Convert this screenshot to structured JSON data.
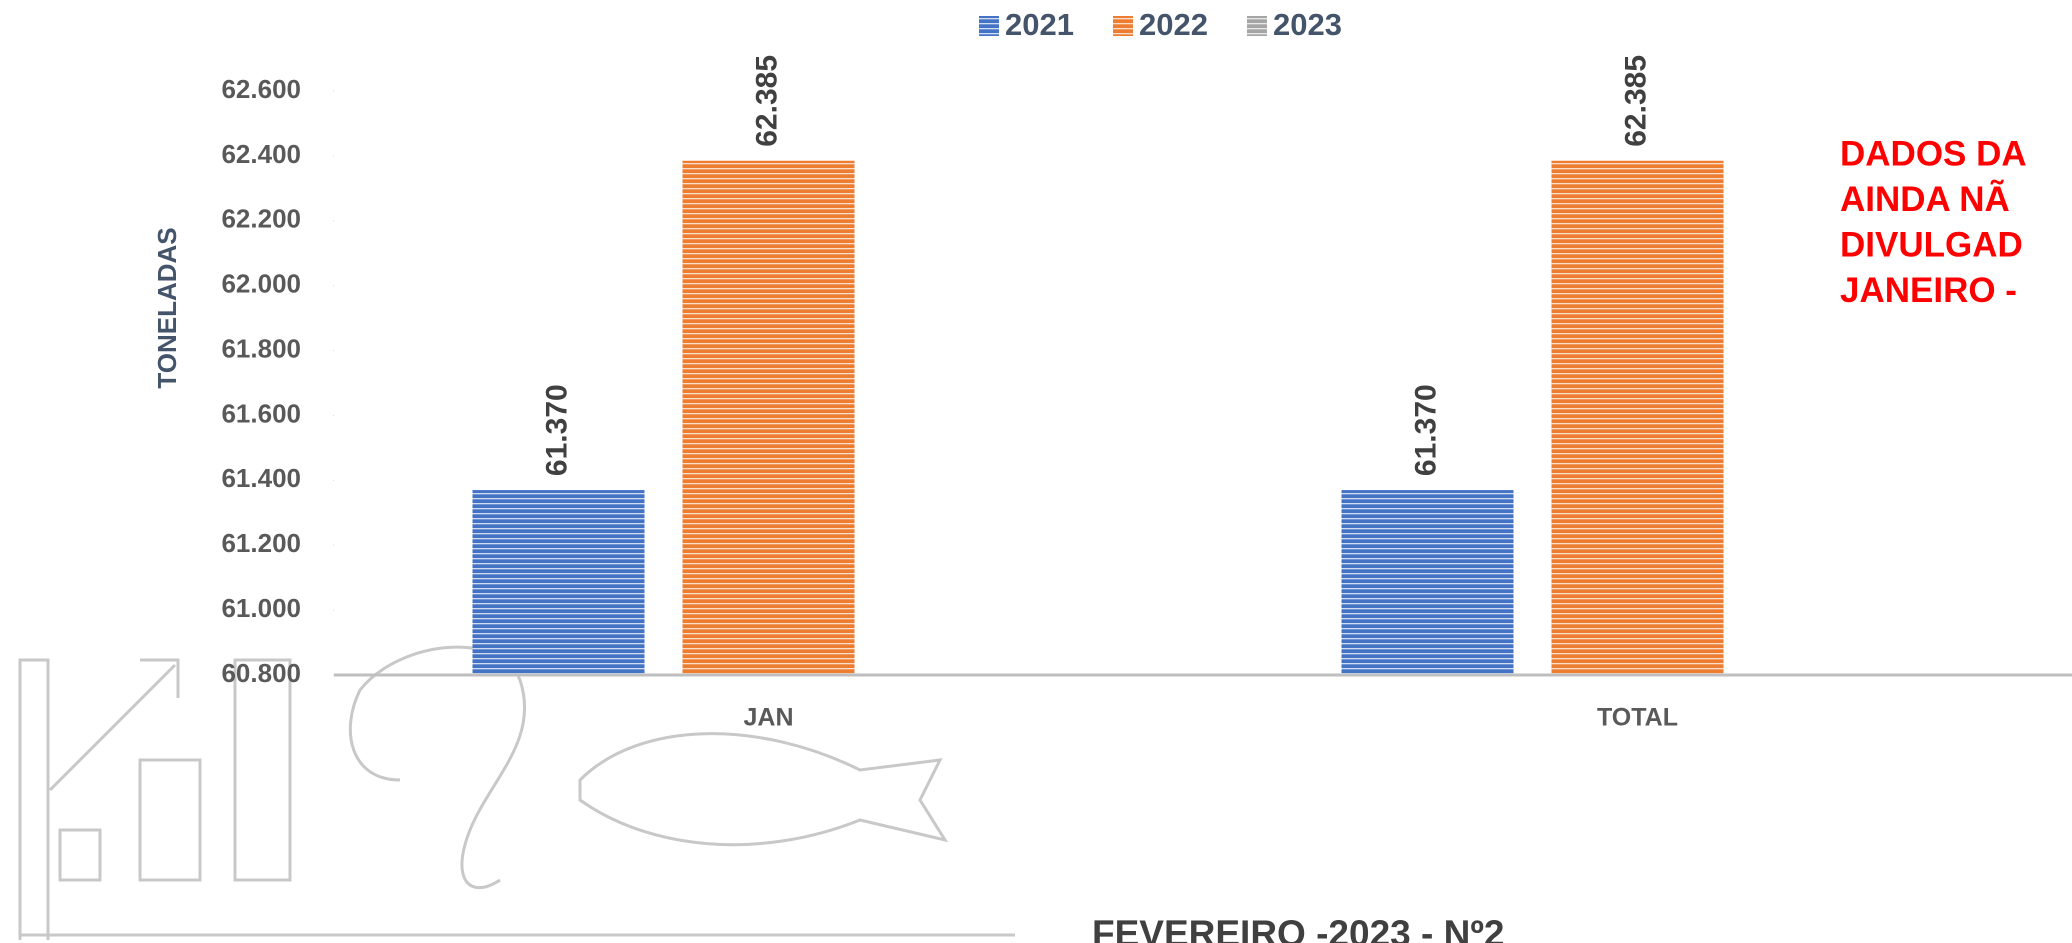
{
  "chart_data": {
    "type": "bar",
    "y_label": "TONELADAS",
    "categories": [
      "JAN",
      "TOTAL"
    ],
    "series": [
      {
        "name": "2021",
        "color": "#4472c4",
        "values": [
          61370,
          61370
        ],
        "value_labels": [
          "61.370",
          "61.370"
        ]
      },
      {
        "name": "2022",
        "color": "#ed7d31",
        "values": [
          62385,
          62385
        ],
        "value_labels": [
          "62.385",
          "62.385"
        ]
      },
      {
        "name": "2023",
        "color": "#a5a5a5",
        "values": [
          null,
          null
        ]
      }
    ],
    "ylim": [
      60800,
      62600
    ],
    "yticks": [
      {
        "value": 60800,
        "label": "60.800"
      },
      {
        "value": 61000,
        "label": "61.000"
      },
      {
        "value": 61200,
        "label": "61.200"
      },
      {
        "value": 61400,
        "label": "61.400"
      },
      {
        "value": 61600,
        "label": "61.600"
      },
      {
        "value": 61800,
        "label": "61.800"
      },
      {
        "value": 62000,
        "label": "62.000"
      },
      {
        "value": 62200,
        "label": "62.200"
      },
      {
        "value": 62400,
        "label": "62.400"
      },
      {
        "value": 62600,
        "label": "62.600"
      }
    ],
    "grid": false,
    "legend": "top",
    "annotation": [
      "DADOS DA",
      "AINDA NÃ",
      "DIVULGAD",
      "JANEIRO -"
    ]
  },
  "footer": "FEVEREIRO -2023 - Nº2"
}
